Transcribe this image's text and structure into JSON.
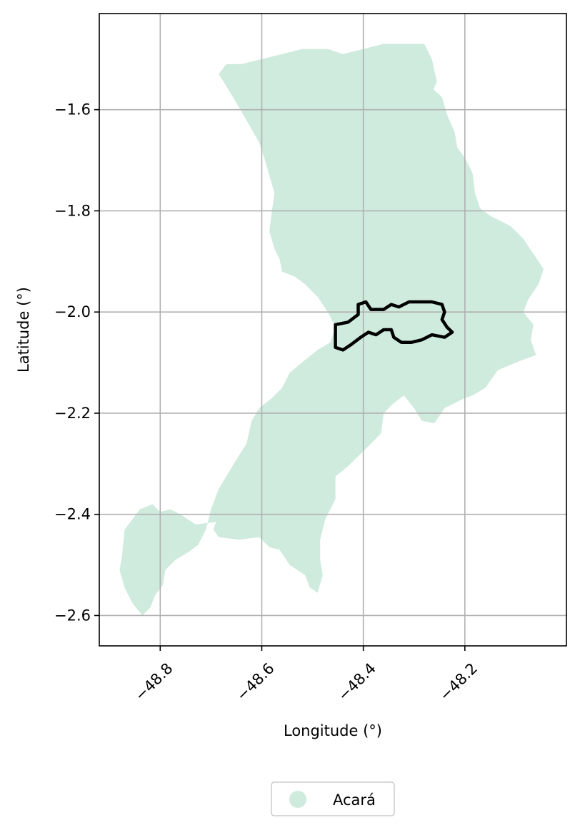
{
  "chart_data": {
    "type": "map",
    "xlabel": "Longitude (°)",
    "ylabel": "Latitude (°)",
    "xlim": [
      -48.92,
      -48.0
    ],
    "ylim": [
      -2.66,
      -1.41
    ],
    "x_ticks": [
      {
        "value": -48.8,
        "label": "−48.8"
      },
      {
        "value": -48.6,
        "label": "−48.6"
      },
      {
        "value": -48.4,
        "label": "−48.4"
      },
      {
        "value": -48.2,
        "label": "−48.2"
      }
    ],
    "y_ticks": [
      {
        "value": -1.6,
        "label": "−1.6"
      },
      {
        "value": -1.8,
        "label": "−1.8"
      },
      {
        "value": -2.0,
        "label": "−2.0"
      },
      {
        "value": -2.2,
        "label": "−2.2"
      },
      {
        "value": -2.4,
        "label": "−2.4"
      },
      {
        "value": -2.6,
        "label": "−2.6"
      }
    ],
    "grid": true,
    "legend": {
      "placement": "bottom-center",
      "entries": [
        {
          "label": "Acará",
          "color": "#cfebdd"
        }
      ]
    },
    "region_color": "#cfebdd",
    "outline_color": "#000000",
    "region_polygon": [
      [
        -48.32,
        -1.47
      ],
      [
        -48.28,
        -1.47
      ],
      [
        -48.265,
        -1.5
      ],
      [
        -48.255,
        -1.545
      ],
      [
        -48.262,
        -1.56
      ],
      [
        -48.245,
        -1.575
      ],
      [
        -48.235,
        -1.61
      ],
      [
        -48.22,
        -1.645
      ],
      [
        -48.215,
        -1.675
      ],
      [
        -48.2,
        -1.695
      ],
      [
        -48.185,
        -1.725
      ],
      [
        -48.18,
        -1.765
      ],
      [
        -48.17,
        -1.795
      ],
      [
        -48.15,
        -1.81
      ],
      [
        -48.11,
        -1.83
      ],
      [
        -48.085,
        -1.855
      ],
      [
        -48.065,
        -1.885
      ],
      [
        -48.045,
        -1.915
      ],
      [
        -48.055,
        -1.945
      ],
      [
        -48.075,
        -1.975
      ],
      [
        -48.085,
        -2.0
      ],
      [
        -48.065,
        -2.025
      ],
      [
        -48.07,
        -2.055
      ],
      [
        -48.06,
        -2.085
      ],
      [
        -48.1,
        -2.1
      ],
      [
        -48.135,
        -2.115
      ],
      [
        -48.16,
        -2.15
      ],
      [
        -48.185,
        -2.165
      ],
      [
        -48.2,
        -2.17
      ],
      [
        -48.24,
        -2.19
      ],
      [
        -48.26,
        -2.22
      ],
      [
        -48.285,
        -2.215
      ],
      [
        -48.3,
        -2.19
      ],
      [
        -48.32,
        -2.165
      ],
      [
        -48.34,
        -2.18
      ],
      [
        -48.36,
        -2.2
      ],
      [
        -48.365,
        -2.24
      ],
      [
        -48.39,
        -2.265
      ],
      [
        -48.41,
        -2.285
      ],
      [
        -48.43,
        -2.305
      ],
      [
        -48.455,
        -2.325
      ],
      [
        -48.455,
        -2.37
      ],
      [
        -48.475,
        -2.41
      ],
      [
        -48.485,
        -2.45
      ],
      [
        -48.485,
        -2.49
      ],
      [
        -48.48,
        -2.52
      ],
      [
        -48.49,
        -2.555
      ],
      [
        -48.505,
        -2.545
      ],
      [
        -48.515,
        -2.52
      ],
      [
        -48.545,
        -2.5
      ],
      [
        -48.565,
        -2.47
      ],
      [
        -48.585,
        -2.465
      ],
      [
        -48.605,
        -2.445
      ],
      [
        -48.645,
        -2.45
      ],
      [
        -48.685,
        -2.445
      ],
      [
        -48.695,
        -2.43
      ],
      [
        -48.69,
        -2.415
      ],
      [
        -48.73,
        -2.42
      ],
      [
        -48.76,
        -2.4
      ],
      [
        -48.78,
        -2.39
      ],
      [
        -48.8,
        -2.395
      ],
      [
        -48.815,
        -2.38
      ],
      [
        -48.84,
        -2.39
      ],
      [
        -48.87,
        -2.43
      ],
      [
        -48.875,
        -2.48
      ],
      [
        -48.88,
        -2.51
      ],
      [
        -48.87,
        -2.545
      ],
      [
        -48.855,
        -2.575
      ],
      [
        -48.835,
        -2.6
      ],
      [
        -48.82,
        -2.585
      ],
      [
        -48.81,
        -2.56
      ],
      [
        -48.795,
        -2.54
      ],
      [
        -48.79,
        -2.51
      ],
      [
        -48.77,
        -2.49
      ],
      [
        -48.745,
        -2.475
      ],
      [
        -48.725,
        -2.46
      ],
      [
        -48.71,
        -2.43
      ],
      [
        -48.7,
        -2.39
      ],
      [
        -48.685,
        -2.35
      ],
      [
        -48.655,
        -2.3
      ],
      [
        -48.63,
        -2.26
      ],
      [
        -48.62,
        -2.215
      ],
      [
        -48.605,
        -2.19
      ],
      [
        -48.58,
        -2.17
      ],
      [
        -48.56,
        -2.15
      ],
      [
        -48.545,
        -2.12
      ],
      [
        -48.515,
        -2.095
      ],
      [
        -48.49,
        -2.075
      ],
      [
        -48.465,
        -2.06
      ],
      [
        -48.455,
        -2.03
      ],
      [
        -48.47,
        -2.0
      ],
      [
        -48.49,
        -1.97
      ],
      [
        -48.515,
        -1.945
      ],
      [
        -48.535,
        -1.93
      ],
      [
        -48.56,
        -1.92
      ],
      [
        -48.565,
        -1.895
      ],
      [
        -48.575,
        -1.875
      ],
      [
        -48.585,
        -1.84
      ],
      [
        -48.58,
        -1.8
      ],
      [
        -48.575,
        -1.765
      ],
      [
        -48.585,
        -1.73
      ],
      [
        -48.595,
        -1.695
      ],
      [
        -48.605,
        -1.665
      ],
      [
        -48.625,
        -1.63
      ],
      [
        -48.645,
        -1.595
      ],
      [
        -48.66,
        -1.57
      ],
      [
        -48.675,
        -1.545
      ],
      [
        -48.685,
        -1.53
      ],
      [
        -48.67,
        -1.51
      ],
      [
        -48.64,
        -1.51
      ],
      [
        -48.6,
        -1.5
      ],
      [
        -48.56,
        -1.49
      ],
      [
        -48.52,
        -1.48
      ],
      [
        -48.47,
        -1.48
      ],
      [
        -48.44,
        -1.49
      ],
      [
        -48.4,
        -1.48
      ],
      [
        -48.36,
        -1.47
      ]
    ],
    "outline_polygon": [
      [
        -48.455,
        -2.025
      ],
      [
        -48.43,
        -2.02
      ],
      [
        -48.41,
        -2.005
      ],
      [
        -48.41,
        -1.985
      ],
      [
        -48.395,
        -1.98
      ],
      [
        -48.385,
        -1.995
      ],
      [
        -48.36,
        -1.995
      ],
      [
        -48.345,
        -1.985
      ],
      [
        -48.33,
        -1.99
      ],
      [
        -48.31,
        -1.98
      ],
      [
        -48.285,
        -1.98
      ],
      [
        -48.265,
        -1.98
      ],
      [
        -48.245,
        -1.985
      ],
      [
        -48.24,
        -2.0
      ],
      [
        -48.245,
        -2.015
      ],
      [
        -48.235,
        -2.03
      ],
      [
        -48.225,
        -2.04
      ],
      [
        -48.24,
        -2.05
      ],
      [
        -48.265,
        -2.045
      ],
      [
        -48.285,
        -2.055
      ],
      [
        -48.305,
        -2.06
      ],
      [
        -48.325,
        -2.06
      ],
      [
        -48.34,
        -2.05
      ],
      [
        -48.345,
        -2.035
      ],
      [
        -48.36,
        -2.035
      ],
      [
        -48.375,
        -2.045
      ],
      [
        -48.39,
        -2.04
      ],
      [
        -48.405,
        -2.05
      ],
      [
        -48.425,
        -2.065
      ],
      [
        -48.44,
        -2.075
      ],
      [
        -48.455,
        -2.07
      ]
    ]
  }
}
